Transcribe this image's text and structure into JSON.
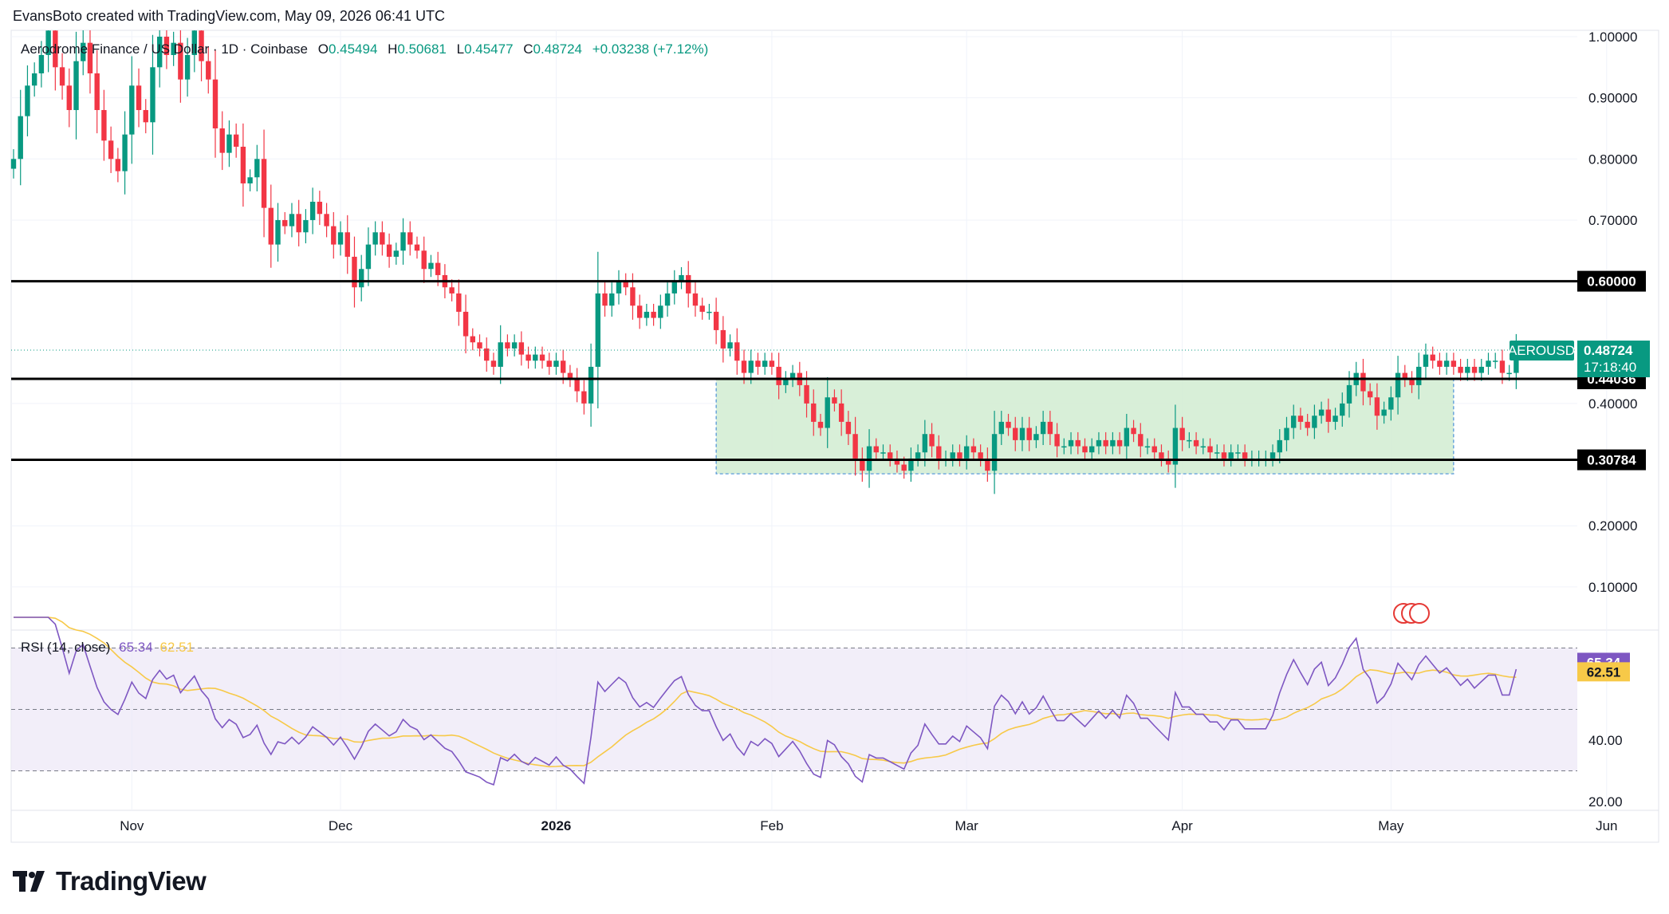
{
  "header": {
    "attribution": "EvansBoto created with TradingView.com, May 09, 2026 06:41 UTC"
  },
  "legend": {
    "symbol": "Aerodrome Finance / US Dollar · 1D · Coinbase",
    "open_label": "O",
    "open": "0.45494",
    "high_label": "H",
    "high": "0.50681",
    "low_label": "L",
    "low": "0.45477",
    "close_label": "C",
    "close": "0.48724",
    "change": "+0.03238 (+7.12%)"
  },
  "price_tag": {
    "ticker": "AEROUSD",
    "price": "0.48724",
    "countdown": "17:18:40"
  },
  "rsi_legend": {
    "name": "RSI (14, close)",
    "rsi": "65.34",
    "ma": "62.51"
  },
  "logo": {
    "text": "TradingView"
  },
  "colors": {
    "up": "#089981",
    "down": "#f23645",
    "rsi_line": "#7e57c2",
    "rsi_ma": "#f7c948",
    "zone_fill": "#d4edd4",
    "zone_border": "#4a90d9",
    "level_line": "#000000"
  },
  "chart_data": [
    {
      "type": "candlestick",
      "title": "Aerodrome Finance / US Dollar · 1D · Coinbase",
      "x_labels": [
        "Nov",
        "Dec",
        "2026",
        "Feb",
        "Mar",
        "Apr",
        "May",
        "Jun"
      ],
      "y_ticks": [
        "1.00000",
        "0.90000",
        "0.80000",
        "0.70000",
        "0.40000",
        "0.20000",
        "0.10000"
      ],
      "ylim": [
        0.05,
        1.0
      ],
      "horizontal_levels": [
        {
          "label": "0.60000",
          "value": 0.6
        },
        {
          "label": "0.44036",
          "value": 0.44036
        },
        {
          "label": "0.30784",
          "value": 0.30784
        }
      ],
      "range_zone": {
        "from": "2026-01-24",
        "to": "2026-05-10",
        "low": 0.285,
        "high": 0.44036
      },
      "last_price": 0.48724,
      "closes": [
        0.8,
        0.87,
        0.92,
        0.94,
        0.97,
        1.01,
        0.95,
        0.92,
        0.88,
        0.96,
        0.99,
        0.94,
        0.88,
        0.83,
        0.8,
        0.78,
        0.84,
        0.92,
        0.88,
        0.86,
        0.95,
        1.0,
        0.97,
        0.99,
        0.93,
        0.97,
        1.01,
        0.96,
        0.93,
        0.85,
        0.81,
        0.84,
        0.82,
        0.76,
        0.77,
        0.8,
        0.72,
        0.66,
        0.7,
        0.69,
        0.71,
        0.68,
        0.7,
        0.73,
        0.71,
        0.69,
        0.66,
        0.68,
        0.64,
        0.59,
        0.62,
        0.66,
        0.68,
        0.66,
        0.64,
        0.65,
        0.68,
        0.66,
        0.65,
        0.62,
        0.63,
        0.61,
        0.59,
        0.58,
        0.55,
        0.51,
        0.5,
        0.49,
        0.47,
        0.46,
        0.5,
        0.49,
        0.5,
        0.48,
        0.47,
        0.48,
        0.47,
        0.46,
        0.47,
        0.45,
        0.44,
        0.42,
        0.4,
        0.46,
        0.58,
        0.56,
        0.58,
        0.6,
        0.59,
        0.56,
        0.54,
        0.55,
        0.54,
        0.56,
        0.58,
        0.6,
        0.61,
        0.58,
        0.56,
        0.55,
        0.55,
        0.52,
        0.49,
        0.5,
        0.47,
        0.45,
        0.47,
        0.46,
        0.47,
        0.46,
        0.43,
        0.44,
        0.45,
        0.43,
        0.4,
        0.37,
        0.36,
        0.41,
        0.4,
        0.37,
        0.35,
        0.31,
        0.29,
        0.33,
        0.32,
        0.32,
        0.31,
        0.3,
        0.29,
        0.31,
        0.32,
        0.35,
        0.33,
        0.31,
        0.31,
        0.32,
        0.31,
        0.33,
        0.32,
        0.31,
        0.29,
        0.35,
        0.37,
        0.36,
        0.34,
        0.36,
        0.34,
        0.35,
        0.37,
        0.35,
        0.33,
        0.33,
        0.34,
        0.33,
        0.32,
        0.33,
        0.34,
        0.33,
        0.34,
        0.33,
        0.36,
        0.35,
        0.33,
        0.33,
        0.32,
        0.31,
        0.3,
        0.36,
        0.34,
        0.34,
        0.33,
        0.33,
        0.32,
        0.32,
        0.31,
        0.32,
        0.32,
        0.31,
        0.31,
        0.31,
        0.31,
        0.32,
        0.34,
        0.36,
        0.38,
        0.37,
        0.36,
        0.38,
        0.39,
        0.37,
        0.38,
        0.4,
        0.43,
        0.45,
        0.42,
        0.41,
        0.38,
        0.39,
        0.41,
        0.45,
        0.44,
        0.43,
        0.46,
        0.48,
        0.47,
        0.46,
        0.47,
        0.46,
        0.45,
        0.46,
        0.45,
        0.46,
        0.47,
        0.47,
        0.45,
        0.45,
        0.487
      ],
      "series_rsi": {
        "name": "RSI (14, close)",
        "ylim": [
          15,
          80
        ],
        "y_ticks": [
          "40.00",
          "20.00"
        ],
        "bands": [
          30,
          50,
          70
        ],
        "last_rsi": 65.34,
        "last_ma": 62.51
      }
    }
  ]
}
